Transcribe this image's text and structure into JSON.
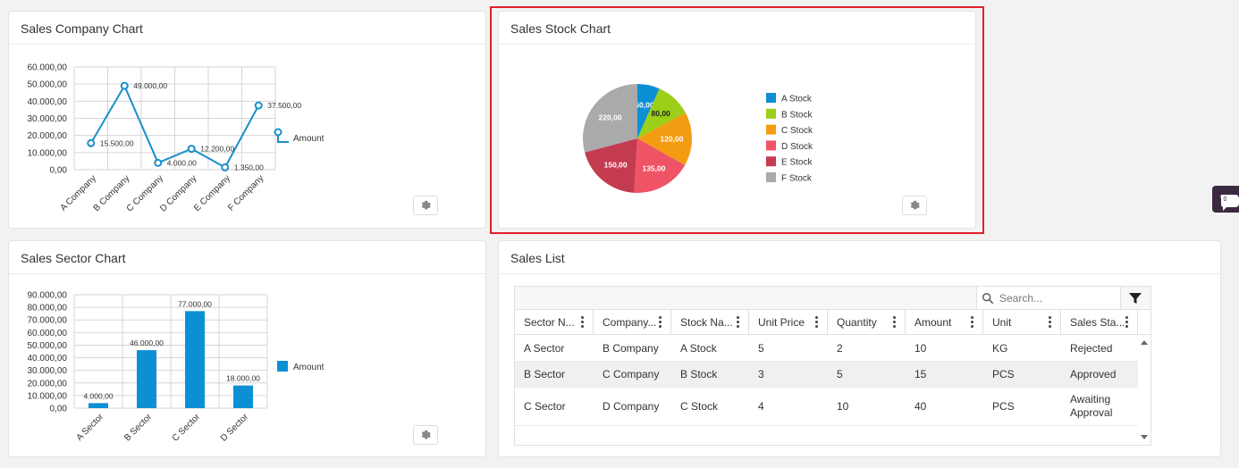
{
  "company_card": {
    "title": "Sales Company Chart",
    "legend": "Amount",
    "chart_data": {
      "type": "line",
      "categories": [
        "A Company",
        "B Company",
        "C Company",
        "D Company",
        "E Company",
        "F Company"
      ],
      "series": [
        {
          "name": "Amount",
          "values": [
            15500,
            49000,
            4000,
            12200,
            1350,
            37500
          ]
        }
      ],
      "data_labels": [
        "15.500,00",
        "49.000,00",
        "4.000,00",
        "12.200,00",
        "1.350,00",
        "37.500,00"
      ],
      "y_ticks": [
        "0,00",
        "10.000,00",
        "20.000,00",
        "30.000,00",
        "40.000,00",
        "50.000,00",
        "60.000,00"
      ],
      "ylim": [
        0,
        60000
      ],
      "grid": true,
      "legend_position": "right",
      "color": "#1a8fc9"
    }
  },
  "stock_card": {
    "title": "Sales Stock Chart",
    "chart_data": {
      "type": "pie",
      "categories": [
        "A Stock",
        "B Stock",
        "C Stock",
        "D Stock",
        "E Stock",
        "F Stock"
      ],
      "values": [
        50,
        80,
        120,
        135,
        150,
        220
      ],
      "data_labels": [
        "50,00",
        "80,00",
        "120,00",
        "135,00",
        "150,00",
        "220,00"
      ],
      "colors": [
        "#0d8fd6",
        "#9ccf17",
        "#f39c12",
        "#ef5466",
        "#c43b50",
        "#aaaaaa"
      ],
      "legend_position": "right"
    }
  },
  "sector_card": {
    "title": "Sales Sector Chart",
    "legend": "Amount",
    "chart_data": {
      "type": "bar",
      "categories": [
        "A Sector",
        "B Sector",
        "C Sector",
        "D Sector"
      ],
      "series": [
        {
          "name": "Amount",
          "values": [
            4000,
            46000,
            77000,
            18000
          ]
        }
      ],
      "data_labels": [
        "4.000,00",
        "46.000,00",
        "77.000,00",
        "18.000,00"
      ],
      "y_ticks": [
        "0,00",
        "10.000,00",
        "20.000,00",
        "30.000,00",
        "40.000,00",
        "50.000,00",
        "60.000,00",
        "70.000,00",
        "80.000,00",
        "90.000,00"
      ],
      "ylim": [
        0,
        90000
      ],
      "grid": true,
      "legend_position": "right",
      "color": "#0d8fd6"
    }
  },
  "sales_list": {
    "title": "Sales List",
    "search_placeholder": "Search...",
    "columns": [
      "Sector N...",
      "Company...",
      "Stock Na...",
      "Unit Price",
      "Quantity",
      "Amount",
      "Unit",
      "Sales Sta..."
    ],
    "rows": [
      [
        "A Sector",
        "B Company",
        "A Stock",
        "5",
        "2",
        "10",
        "KG",
        "Rejected"
      ],
      [
        "B Sector",
        "C Company",
        "B Stock",
        "3",
        "5",
        "15",
        "PCS",
        "Approved"
      ],
      [
        "C Sector",
        "D Company",
        "C Stock",
        "4",
        "10",
        "40",
        "PCS",
        "Awaiting Approval"
      ]
    ]
  },
  "side_widget": {
    "badge": "0"
  }
}
